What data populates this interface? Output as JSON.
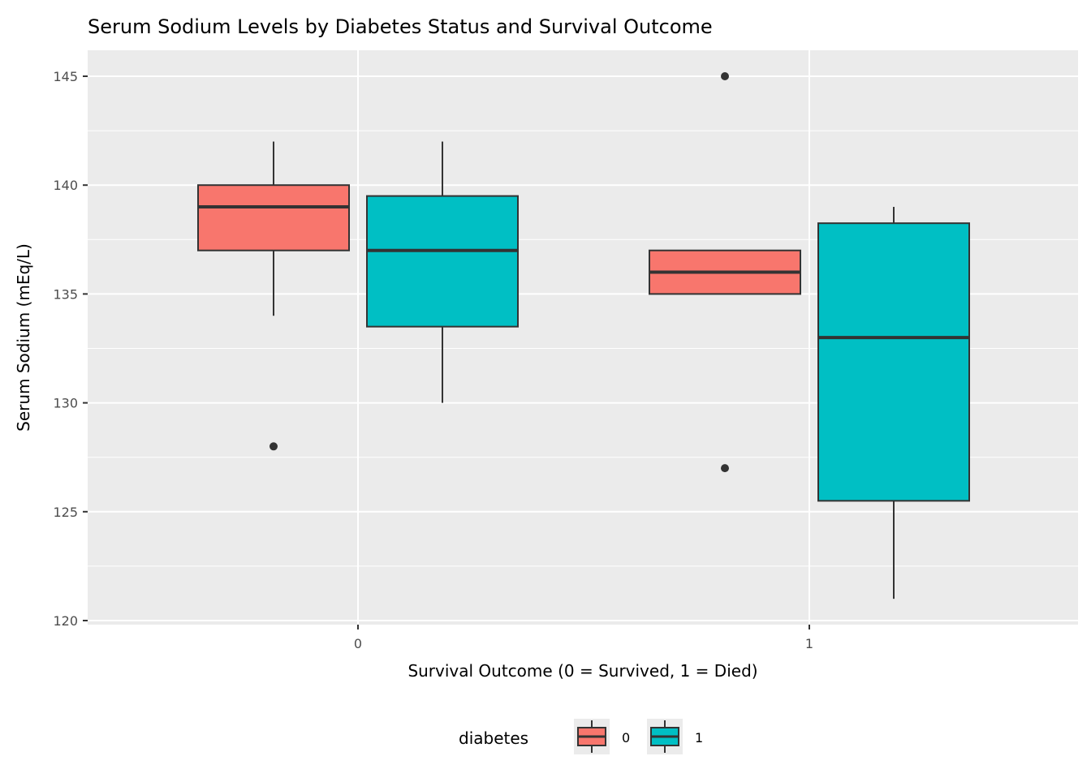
{
  "chart_data": {
    "type": "boxplot",
    "title": "Serum Sodium Levels by Diabetes Status and Survival Outcome",
    "xlabel": "Survival Outcome (0 = Survived, 1 = Died)",
    "ylabel": "Serum Sodium (mEq/L)",
    "categories": [
      "0",
      "1"
    ],
    "ylim": [
      119.8,
      146.3
    ],
    "yticks": [
      120,
      125,
      130,
      135,
      140,
      145
    ],
    "grid": true,
    "legend": {
      "title": "diabetes",
      "position": "bottom",
      "entries": [
        "0",
        "1"
      ]
    },
    "series": [
      {
        "name": "0",
        "color": "#F8766D",
        "boxes": [
          {
            "category": "0",
            "lower": 134,
            "q1": 137,
            "median": 139,
            "q3": 140,
            "upper": 142,
            "outliers": [
              128
            ]
          },
          {
            "category": "1",
            "lower": 135,
            "q1": 135,
            "median": 136,
            "q3": 137,
            "upper": 137,
            "outliers": [
              145,
              127
            ]
          }
        ]
      },
      {
        "name": "1",
        "color": "#00BFC4",
        "boxes": [
          {
            "category": "0",
            "lower": 130,
            "q1": 133.5,
            "median": 137,
            "q3": 139.5,
            "upper": 142,
            "outliers": []
          },
          {
            "category": "1",
            "lower": 121,
            "q1": 125.5,
            "median": 133,
            "q3": 138.25,
            "upper": 139,
            "outliers": []
          }
        ]
      }
    ]
  }
}
